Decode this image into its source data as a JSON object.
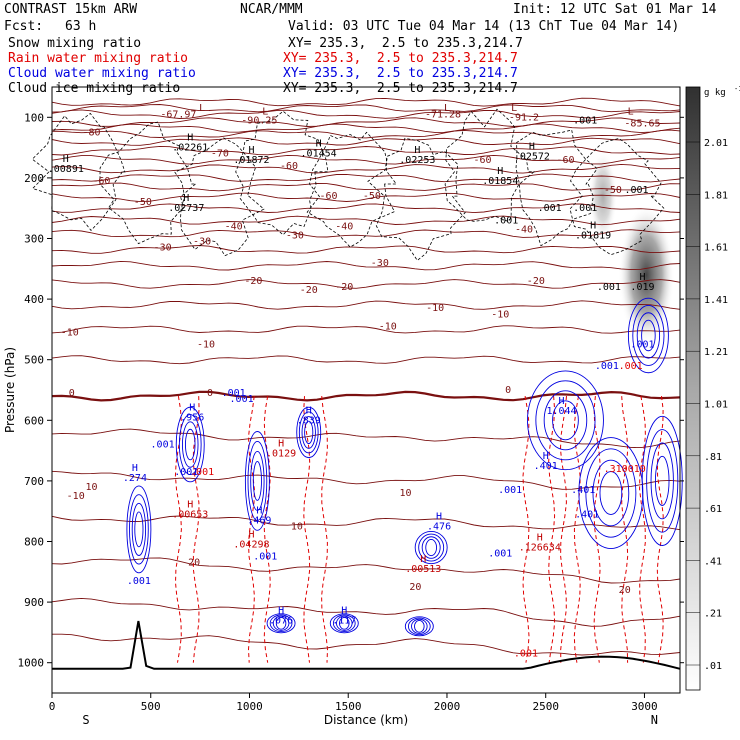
{
  "header": {
    "model": "CONTRAST 15km ARW",
    "center": "NCAR/MMM",
    "init": "Init: 12 UTC Sat 01 Mar 14",
    "fcst_label": "Fcst:",
    "fcst_value": "63 h",
    "valid": "Valid: 03 UTC Tue 04 Mar 14 (13 ChT Tue 04 Mar 14)"
  },
  "fields": [
    {
      "label": "Snow mixing ratio",
      "xy": "XY= 235.3,  2.5 to 235.3,214.7",
      "color": "#000000"
    },
    {
      "label": "Rain water mixing ratio",
      "xy": "XY= 235.3,  2.5 to 235.3,214.7",
      "color": "#e00000"
    },
    {
      "label": "Cloud water mixing ratio",
      "xy": "XY= 235.3,  2.5 to 235.3,214.7",
      "color": "#0000e0"
    },
    {
      "label": "Cloud ice mixing ratio",
      "xy": "XY= 235.3,  2.5 to 235.3,214.7",
      "color": "#000000"
    }
  ],
  "chart_data": {
    "type": "contour",
    "xlabel": "Distance (km)",
    "ylabel": "Pressure (hPa)",
    "xlim": [
      0,
      3180
    ],
    "ylim": [
      1050,
      50
    ],
    "x_ticks": [
      0,
      500,
      1000,
      1500,
      2000,
      2500,
      3000
    ],
    "y_ticks": [
      100,
      200,
      300,
      400,
      500,
      600,
      700,
      800,
      900,
      1000
    ],
    "direction_labels": {
      "left": "S",
      "right": "N"
    },
    "colorbar": {
      "unit": "g kg",
      "unit_exp": "-1",
      "levels": [
        "2.01",
        "1.81",
        "1.61",
        "1.41",
        "1.21",
        "1.01",
        ".81",
        ".61",
        ".41",
        ".21",
        ".01"
      ]
    },
    "temperature_labels": [
      {
        "x": 640,
        "p": 100,
        "text": "-67.97"
      },
      {
        "x": 1050,
        "p": 110,
        "text": "-90.25"
      },
      {
        "x": 1980,
        "p": 100,
        "text": "-71.28"
      },
      {
        "x": 2390,
        "p": 105,
        "text": "-91.2"
      },
      {
        "x": 2990,
        "p": 115,
        "text": "-85.65"
      },
      {
        "x": 200,
        "p": 130,
        "text": "-80"
      },
      {
        "x": 850,
        "p": 165,
        "text": "-70"
      },
      {
        "x": 1200,
        "p": 185,
        "text": "-60"
      },
      {
        "x": 250,
        "p": 210,
        "text": "-60"
      },
      {
        "x": 1400,
        "p": 235,
        "text": "-60"
      },
      {
        "x": 2180,
        "p": 175,
        "text": "-60"
      },
      {
        "x": 2600,
        "p": 175,
        "text": "-60"
      },
      {
        "x": 460,
        "p": 245,
        "text": "-50"
      },
      {
        "x": 1620,
        "p": 235,
        "text": "-50"
      },
      {
        "x": 2840,
        "p": 225,
        "text": "-50"
      },
      {
        "x": 920,
        "p": 285,
        "text": "-40"
      },
      {
        "x": 1480,
        "p": 285,
        "text": "-40"
      },
      {
        "x": 2390,
        "p": 290,
        "text": "-40"
      },
      {
        "x": 560,
        "p": 320,
        "text": "-30"
      },
      {
        "x": 1230,
        "p": 300,
        "text": "-30"
      },
      {
        "x": 760,
        "p": 310,
        "text": "-30"
      },
      {
        "x": 1660,
        "p": 345,
        "text": "-30"
      },
      {
        "x": 1020,
        "p": 375,
        "text": "-20"
      },
      {
        "x": 1300,
        "p": 390,
        "text": "-20"
      },
      {
        "x": 1480,
        "p": 385,
        "text": "-20"
      },
      {
        "x": 2450,
        "p": 375,
        "text": "-20"
      },
      {
        "x": 1940,
        "p": 420,
        "text": "-10"
      },
      {
        "x": 2270,
        "p": 430,
        "text": "-10"
      },
      {
        "x": 1700,
        "p": 450,
        "text": "-10"
      },
      {
        "x": 90,
        "p": 460,
        "text": "-10"
      },
      {
        "x": 780,
        "p": 480,
        "text": "-10"
      },
      {
        "x": 100,
        "p": 560,
        "text": "0"
      },
      {
        "x": 800,
        "p": 560,
        "text": "0"
      },
      {
        "x": 2310,
        "p": 555,
        "text": "0"
      },
      {
        "x": 120,
        "p": 730,
        "text": "-10"
      },
      {
        "x": 200,
        "p": 715,
        "text": "10"
      },
      {
        "x": 1790,
        "p": 725,
        "text": "10"
      },
      {
        "x": 1240,
        "p": 780,
        "text": "10"
      },
      {
        "x": 720,
        "p": 840,
        "text": "20"
      },
      {
        "x": 1840,
        "p": 880,
        "text": "20"
      },
      {
        "x": 2900,
        "p": 885,
        "text": "20"
      }
    ],
    "extrema_labels": [
      {
        "x": 70,
        "p": 190,
        "kind": "H",
        "value": ".00891"
      },
      {
        "x": 700,
        "p": 155,
        "kind": "H",
        "value": ".02261"
      },
      {
        "x": 1010,
        "p": 175,
        "kind": "H",
        "value": ".01872"
      },
      {
        "x": 1350,
        "p": 165,
        "kind": "H",
        "value": ".01454"
      },
      {
        "x": 1850,
        "p": 175,
        "kind": "H",
        "value": ".02253"
      },
      {
        "x": 2430,
        "p": 170,
        "kind": "H",
        "value": ".02572"
      },
      {
        "x": 2270,
        "p": 210,
        "kind": "H",
        "value": ".01854"
      },
      {
        "x": 680,
        "p": 255,
        "kind": "H",
        "value": ".02737"
      },
      {
        "x": 2740,
        "p": 300,
        "kind": "H",
        "value": ".01819"
      },
      {
        "x": 2990,
        "p": 385,
        "kind": "H",
        "value": ".019"
      },
      {
        "x": 710,
        "p": 600,
        "kind": "H",
        "value": ".956"
      },
      {
        "x": 1300,
        "p": 605,
        "kind": "H",
        "value": ".839"
      },
      {
        "x": 2580,
        "p": 590,
        "kind": "H",
        "value": "1.044"
      },
      {
        "x": 2500,
        "p": 680,
        "kind": "H",
        "value": ".401"
      },
      {
        "x": 420,
        "p": 700,
        "kind": "H",
        "value": ".274"
      },
      {
        "x": 1050,
        "p": 770,
        "kind": "H",
        "value": ".469"
      },
      {
        "x": 1960,
        "p": 780,
        "kind": "H",
        "value": ".476"
      },
      {
        "x": 700,
        "p": 760,
        "kind": "H",
        "value": ".00653"
      },
      {
        "x": 1010,
        "p": 810,
        "kind": "H",
        "value": ".04298"
      },
      {
        "x": 1880,
        "p": 850,
        "kind": "H",
        "value": ".00513"
      },
      {
        "x": 2470,
        "p": 815,
        "kind": "H",
        "value": ".126634"
      },
      {
        "x": 1160,
        "p": 660,
        "kind": "H",
        "value": ".0129"
      },
      {
        "x": 1160,
        "p": 935,
        "kind": "H",
        "value": ".076"
      },
      {
        "x": 1480,
        "p": 935,
        "kind": "H",
        "value": ".117"
      }
    ],
    "value_labels": [
      {
        "x": 2700,
        "p": 110,
        "text": ".001",
        "color": "#000000"
      },
      {
        "x": 2700,
        "p": 255,
        "text": ".001",
        "color": "#000000"
      },
      {
        "x": 2300,
        "p": 275,
        "text": ".001",
        "color": "#000000"
      },
      {
        "x": 2520,
        "p": 255,
        "text": ".001",
        "color": "#000000"
      },
      {
        "x": 2820,
        "p": 385,
        "text": ".001",
        "color": "#000000"
      },
      {
        "x": 2960,
        "p": 225,
        "text": ".001",
        "color": "#000000"
      },
      {
        "x": 960,
        "p": 570,
        "text": ".001",
        "color": "#0000e0"
      },
      {
        "x": 560,
        "p": 645,
        "text": ".001",
        "color": "#0000e0"
      },
      {
        "x": 680,
        "p": 690,
        "text": ".001",
        "color": "#0000e0"
      },
      {
        "x": 1080,
        "p": 830,
        "text": ".001",
        "color": "#0000e0"
      },
      {
        "x": 440,
        "p": 870,
        "text": ".001",
        "color": "#0000e0"
      },
      {
        "x": 2270,
        "p": 825,
        "text": ".001",
        "color": "#0000e0"
      },
      {
        "x": 2320,
        "p": 720,
        "text": ".001",
        "color": "#0000e0"
      },
      {
        "x": 2810,
        "p": 515,
        "text": ".001",
        "color": "#0000e0"
      },
      {
        "x": 2990,
        "p": 480,
        "text": ".001",
        "color": "#0000e0"
      },
      {
        "x": 2690,
        "p": 720,
        "text": ".401",
        "color": "#0000e0"
      },
      {
        "x": 2710,
        "p": 760,
        "text": ".401",
        "color": "#0000e0"
      },
      {
        "x": 2930,
        "p": 515,
        "text": ".001",
        "color": "#e00000"
      },
      {
        "x": 2900,
        "p": 685,
        "text": ".310010",
        "color": "#e00000"
      },
      {
        "x": 2400,
        "p": 990,
        "text": ".001",
        "color": "#e00000"
      },
      {
        "x": 760,
        "p": 690,
        "text": ".001",
        "color": "#e00000"
      }
    ],
    "L_labels": [
      {
        "x": 760,
        "p": 90
      },
      {
        "x": 1080,
        "p": 95
      },
      {
        "x": 2000,
        "p": 90
      },
      {
        "x": 2340,
        "p": 90
      },
      {
        "x": 2930,
        "p": 95
      }
    ],
    "frame": {
      "label": ".001",
      "label_x": 920,
      "label_p": 560
    }
  }
}
